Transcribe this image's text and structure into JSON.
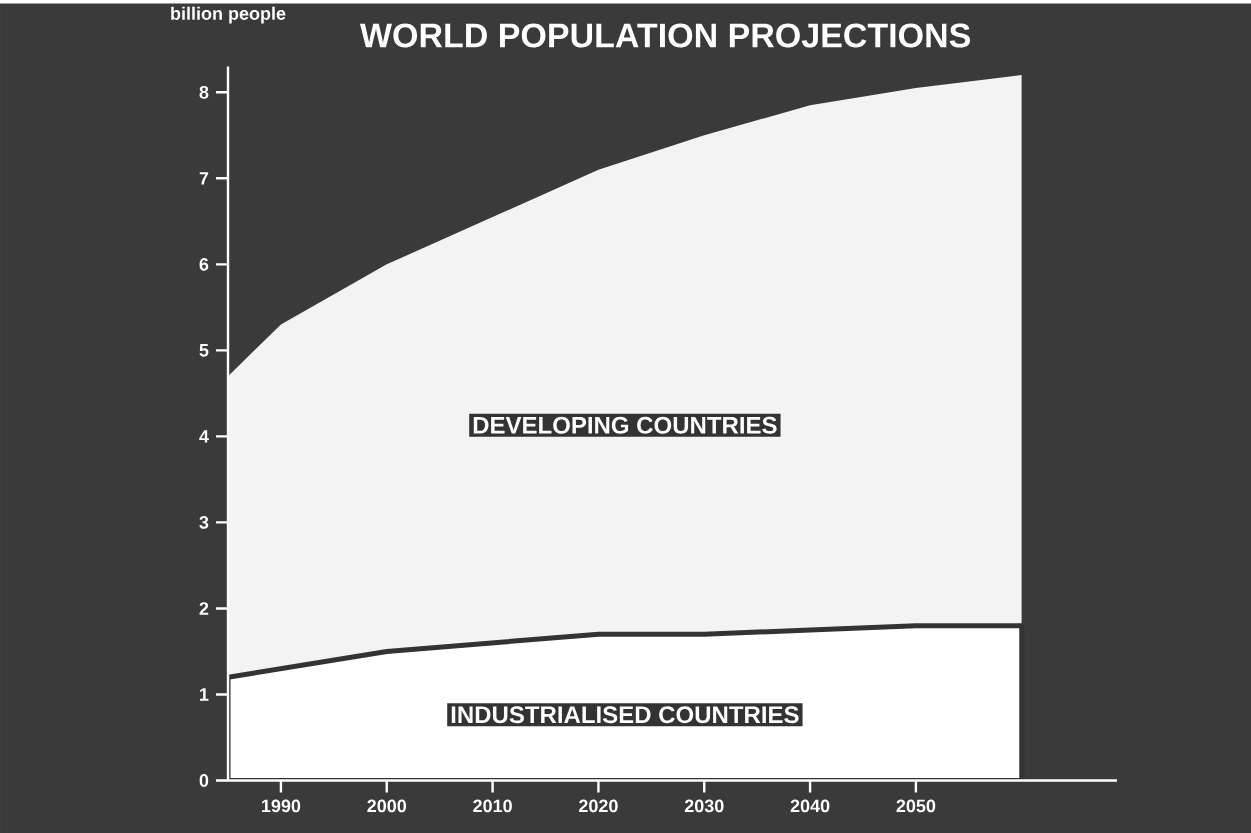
{
  "chart_data": {
    "type": "area",
    "stacked": true,
    "title": "WORLD POPULATION PROJECTIONS",
    "ylabel": "billion people",
    "x": [
      1985,
      1990,
      2000,
      2010,
      2020,
      2030,
      2040,
      2050,
      2060
    ],
    "xlim": [
      1985,
      2069
    ],
    "ylim": [
      0,
      8.3
    ],
    "xticks": [
      1990,
      2000,
      2010,
      2020,
      2030,
      2040,
      2050
    ],
    "yticks": [
      0,
      1,
      2,
      3,
      4,
      5,
      6,
      7,
      8
    ],
    "series": [
      {
        "name": "INDUSTRIALISED COUNTRIES",
        "color": "#ffffff",
        "values": [
          1.2,
          1.3,
          1.5,
          1.6,
          1.7,
          1.7,
          1.75,
          1.8,
          1.8
        ]
      },
      {
        "name": "DEVELOPING COUNTRIES",
        "color": "#f3f3f3",
        "values": [
          3.5,
          4.0,
          4.5,
          4.95,
          5.4,
          5.8,
          6.1,
          6.25,
          6.4
        ]
      }
    ]
  }
}
